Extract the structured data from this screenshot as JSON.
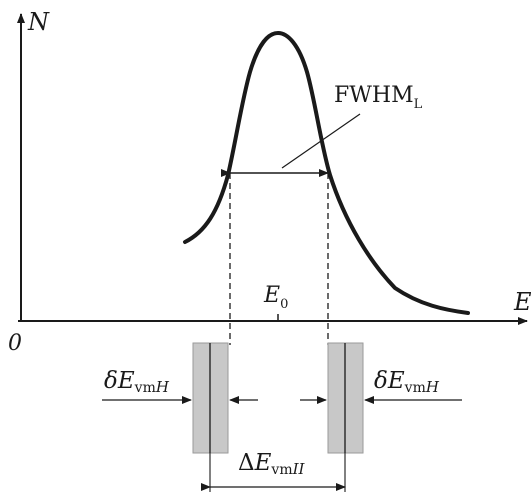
{
  "axes": {
    "y_label": "N",
    "x_label": "E",
    "origin_label": "0"
  },
  "peak": {
    "label_main": "E",
    "label_sub": "0"
  },
  "fwhm": {
    "label_main": "FWHM",
    "label_sub": "L"
  },
  "window_left": {
    "label_delta": "δ",
    "label_main": "E",
    "label_sub": "vm",
    "label_suffix": "H"
  },
  "window_right": {
    "label_delta": "δ",
    "label_main": "E",
    "label_sub": "vm",
    "label_suffix": "H"
  },
  "window_spacing": {
    "label_delta": "Δ",
    "label_main": "E",
    "label_sub": "vm",
    "label_suffix": "II"
  },
  "colors": {
    "line": "#1a1a1a",
    "band": "#c8c8c8"
  }
}
